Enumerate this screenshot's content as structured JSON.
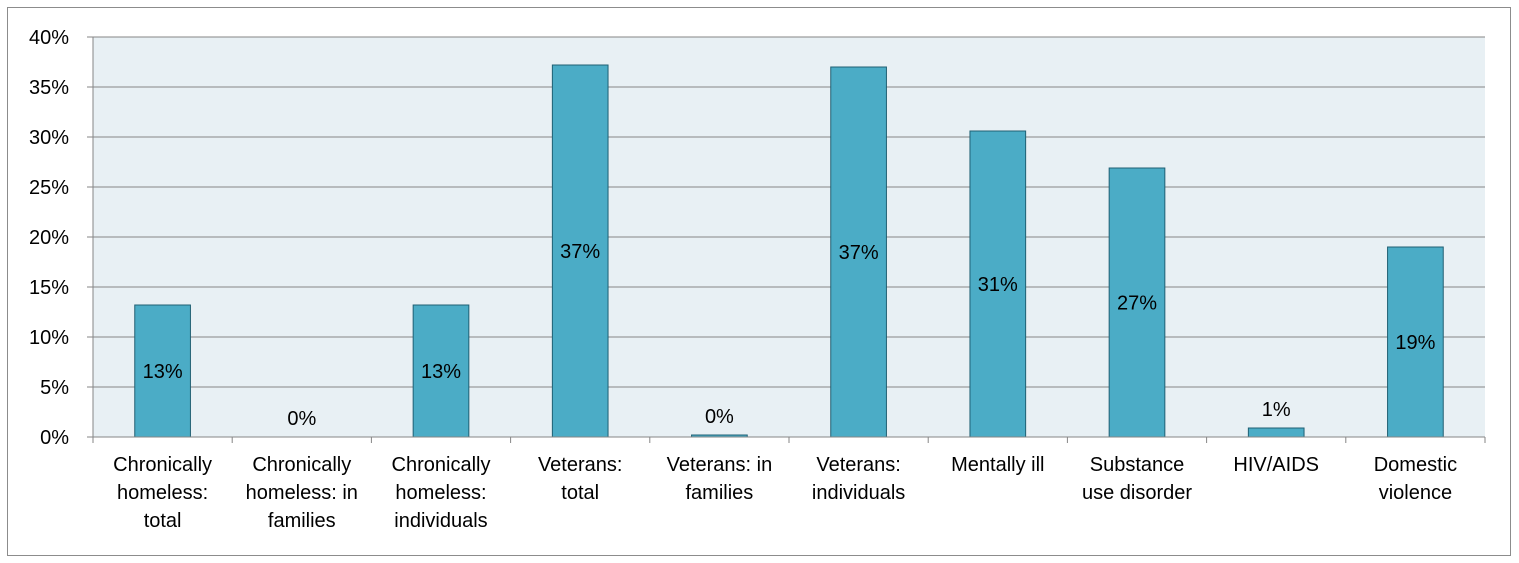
{
  "chart_data": {
    "type": "bar",
    "title": "",
    "xlabel": "",
    "ylabel": "",
    "ylim": [
      0,
      40
    ],
    "y_ticks": [
      "0%",
      "5%",
      "10%",
      "15%",
      "20%",
      "25%",
      "30%",
      "35%",
      "40%"
    ],
    "y_tick_values": [
      0,
      5,
      10,
      15,
      20,
      25,
      30,
      35,
      40
    ],
    "grid": true,
    "legend": "none",
    "categories": [
      [
        "Chronically",
        "homeless:",
        "total"
      ],
      [
        "Chronically",
        "homeless: in",
        "families"
      ],
      [
        "Chronically",
        "homeless:",
        "individuals"
      ],
      [
        "Veterans:",
        "total"
      ],
      [
        "Veterans: in",
        "families"
      ],
      [
        "Veterans:",
        "individuals"
      ],
      [
        "Mentally ill"
      ],
      [
        "Substance",
        "use disorder"
      ],
      [
        "HIV/AIDS"
      ],
      [
        "Domestic",
        "violence"
      ]
    ],
    "values": [
      13.2,
      0.0,
      13.2,
      37.2,
      0.2,
      37.0,
      30.6,
      26.9,
      0.9,
      19.0
    ],
    "data_labels": [
      "13%",
      "0%",
      "13%",
      "37%",
      "0%",
      "37%",
      "31%",
      "27%",
      "1%",
      "19%"
    ],
    "colors": {
      "bar_fill": "#4BACC6",
      "bar_stroke": "#1F5F73",
      "plot_background": "#E8F0F4",
      "gridline": "#868686",
      "axis": "#868686"
    }
  }
}
